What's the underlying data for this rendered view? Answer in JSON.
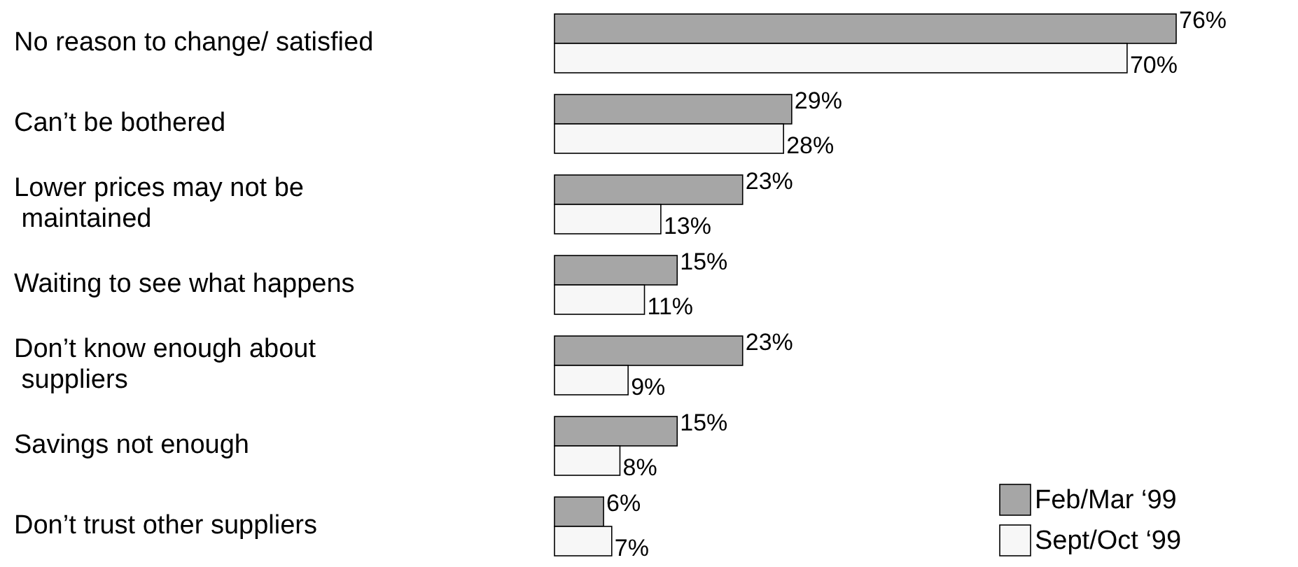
{
  "chart_data": {
    "type": "bar",
    "orientation": "horizontal",
    "categories": [
      "No reason to change/ satisfied",
      "Can’t be bothered",
      "Lower prices may not be maintained",
      "Waiting to see what happens",
      "Don’t know enough about suppliers",
      "Savings not enough",
      "Don’t trust other suppliers"
    ],
    "series": [
      {
        "name": "Feb/Mar ‘99",
        "color": "#a6a6a6",
        "values": [
          76,
          29,
          23,
          15,
          23,
          15,
          6
        ],
        "value_labels": [
          "76%",
          "29%",
          "23%",
          "15%",
          "23%",
          "15%",
          "6%"
        ]
      },
      {
        "name": "Sept/Oct ‘99",
        "color": "#f7f7f7",
        "values": [
          70,
          28,
          13,
          11,
          9,
          8,
          7
        ],
        "value_labels": [
          "70%",
          "28%",
          "13%",
          "11%",
          "9%",
          "8%",
          "7%"
        ]
      }
    ],
    "xlim": [
      0,
      76
    ],
    "tick_labels": "y",
    "legend": "bottom right"
  }
}
